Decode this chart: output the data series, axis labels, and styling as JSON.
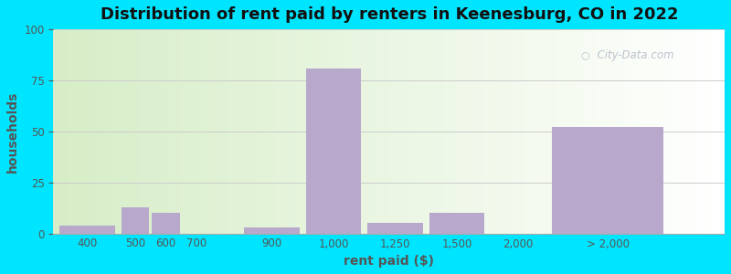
{
  "title": "Distribution of rent paid by renters in Keenesburg, CO in 2022",
  "xlabel": "rent paid ($)",
  "ylabel": "households",
  "bar_color": "#b8a9cc",
  "background_outer": "#00e5ff",
  "ylim": [
    0,
    100
  ],
  "yticks": [
    0,
    25,
    50,
    75,
    100
  ],
  "tick_labels": [
    "400",
    "500",
    "600",
    "700",
    "900",
    "1,000",
    "1,250",
    "1,500",
    "2,000",
    "> 2,000"
  ],
  "values": [
    4,
    13,
    10,
    0,
    3,
    81,
    5,
    10,
    0,
    52
  ],
  "bar_lefts": [
    0,
    1,
    1.5,
    2,
    3,
    4,
    5,
    6,
    7,
    8
  ],
  "bar_widths": [
    0.9,
    0.45,
    0.45,
    0.45,
    0.9,
    0.9,
    0.9,
    0.9,
    0.9,
    1.8
  ],
  "tick_pos": [
    0.45,
    1.225,
    1.725,
    2.225,
    3.45,
    4.45,
    5.45,
    6.45,
    7.45,
    8.9
  ],
  "xlim": [
    -0.1,
    10.8
  ],
  "watermark_text": "City-Data.com",
  "title_fontsize": 13,
  "axis_label_fontsize": 10,
  "tick_fontsize": 8.5
}
